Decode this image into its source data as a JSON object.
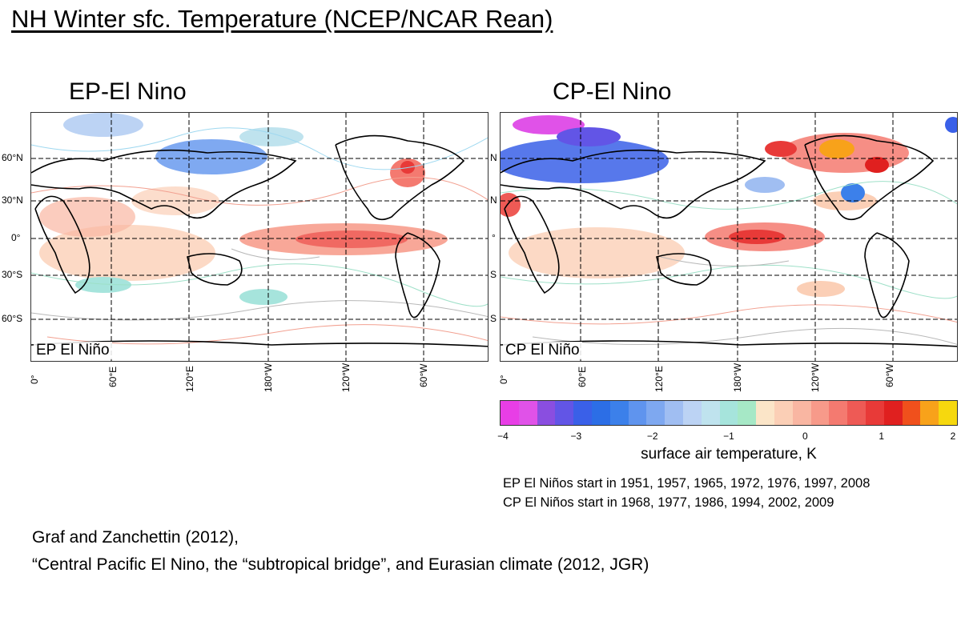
{
  "slide": {
    "title": "NH Winter sfc. Temperature (NCEP/NCAR Rean)"
  },
  "panels": [
    {
      "title": "EP-El Nino",
      "map_label": "EP El Niño",
      "lat_labels": [
        "60°N",
        "30°N",
        "0°",
        "30°S",
        "60°S"
      ],
      "lon_labels": [
        "0°",
        "60°E",
        "120°E",
        "180°W",
        "120°W",
        "60°W"
      ]
    },
    {
      "title": "CP-El Nino",
      "map_label": "CP El Niño",
      "lat_labels": [
        "N",
        "N",
        "°",
        "S",
        "S"
      ],
      "lon_labels": [
        "0°",
        "60°E",
        "120°E",
        "180°W",
        "120°W",
        "60°W"
      ]
    }
  ],
  "colorbar": {
    "min": -4,
    "max": 2,
    "ticks": [
      "−4",
      "−3",
      "−2",
      "−1",
      "0",
      "1",
      "2"
    ],
    "label": "surface air temperature, K",
    "colors": [
      "#e83ee6",
      "#e052e8",
      "#8a4ee0",
      "#6255e6",
      "#3a60e8",
      "#2c6ee6",
      "#3c80ea",
      "#5f94ee",
      "#7ea8f0",
      "#a0bef2",
      "#bcd3f4",
      "#bfe3ee",
      "#a6e4dc",
      "#a6e8c6",
      "#fbe5c8",
      "#fbcfb6",
      "#f9b6a2",
      "#f79a8a",
      "#f47a70",
      "#ee5a55",
      "#e83a38",
      "#e0201f",
      "#f0501c",
      "#f8a21a",
      "#f6d80e"
    ]
  },
  "notes": {
    "ep_years": "EP El Niños start in 1951, 1957, 1965, 1972, 1976, 1997, 2008",
    "cp_years": "CP El Niños start in 1968, 1977, 1986, 1994, 2002, 2009"
  },
  "citation": {
    "line1": "Graf and Zanchettin (2012),",
    "line2": "“Central Pacific El Nino, the “subtropical bridge”, and Eurasian climate (2012, JGR)"
  }
}
